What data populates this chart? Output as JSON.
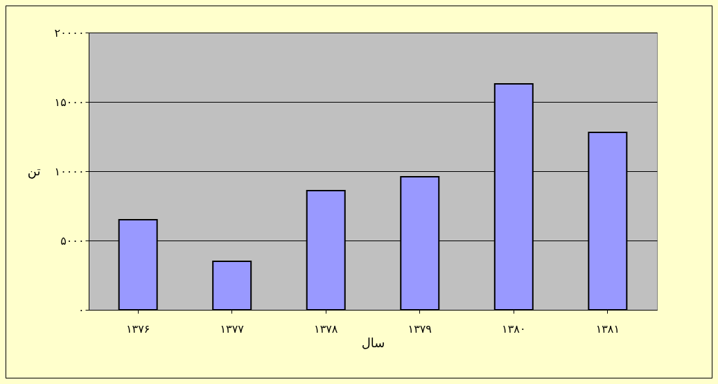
{
  "chart_data": {
    "type": "bar",
    "xlabel": "سال",
    "ylabel": "تن",
    "categories": [
      "۱۳۷۶",
      "۱۳۷۷",
      "۱۳۷۸",
      "۱۳۷۹",
      "۱۳۸۰",
      "۱۳۸۱"
    ],
    "values": [
      6500,
      3500,
      8600,
      9600,
      16300,
      12800
    ],
    "color": "#9999ff",
    "ylim": [
      0,
      20000
    ],
    "yticks": [
      {
        "value": 0,
        "label": "۰"
      },
      {
        "value": 5000,
        "label": "۵۰۰۰"
      },
      {
        "value": 10000,
        "label": "۱۰۰۰۰"
      },
      {
        "value": 15000,
        "label": "۱۵۰۰۰"
      },
      {
        "value": 20000,
        "label": "۲۰۰۰۰"
      }
    ],
    "grid": "y"
  }
}
